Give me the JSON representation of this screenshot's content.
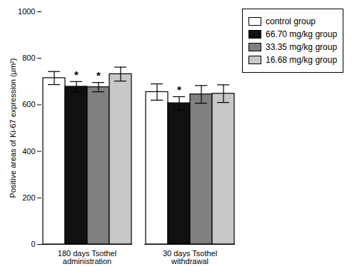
{
  "chart_data": {
    "type": "bar",
    "categories": [
      "180 days Tsothel\nadministration",
      "30 days Tsothel\nwithdrawal"
    ],
    "series": [
      {
        "name": "control group",
        "color": "#ffffff",
        "values": [
          715,
          655
        ],
        "errors": [
          28,
          35
        ],
        "annotations": [
          null,
          null
        ]
      },
      {
        "name": "66.70 mg/kg group",
        "color": "#111111",
        "values": [
          678,
          607
        ],
        "errors": [
          22,
          28
        ],
        "annotations": [
          "*",
          "*"
        ]
      },
      {
        "name": "33.35 mg/kg group",
        "color": "#808080",
        "values": [
          676,
          645
        ],
        "errors": [
          20,
          38
        ],
        "annotations": [
          "*",
          null
        ]
      },
      {
        "name": "16.68 mg/kg group",
        "color": "#c8c8c8",
        "values": [
          732,
          648
        ],
        "errors": [
          30,
          38
        ],
        "annotations": [
          null,
          null
        ]
      }
    ],
    "ylabel": "Positive areas of Ki-67 expression (μm²)",
    "ylim": [
      0,
      1000
    ],
    "yticks": [
      0,
      200,
      400,
      600,
      800,
      1000
    ],
    "grid": false,
    "legend": "right"
  }
}
